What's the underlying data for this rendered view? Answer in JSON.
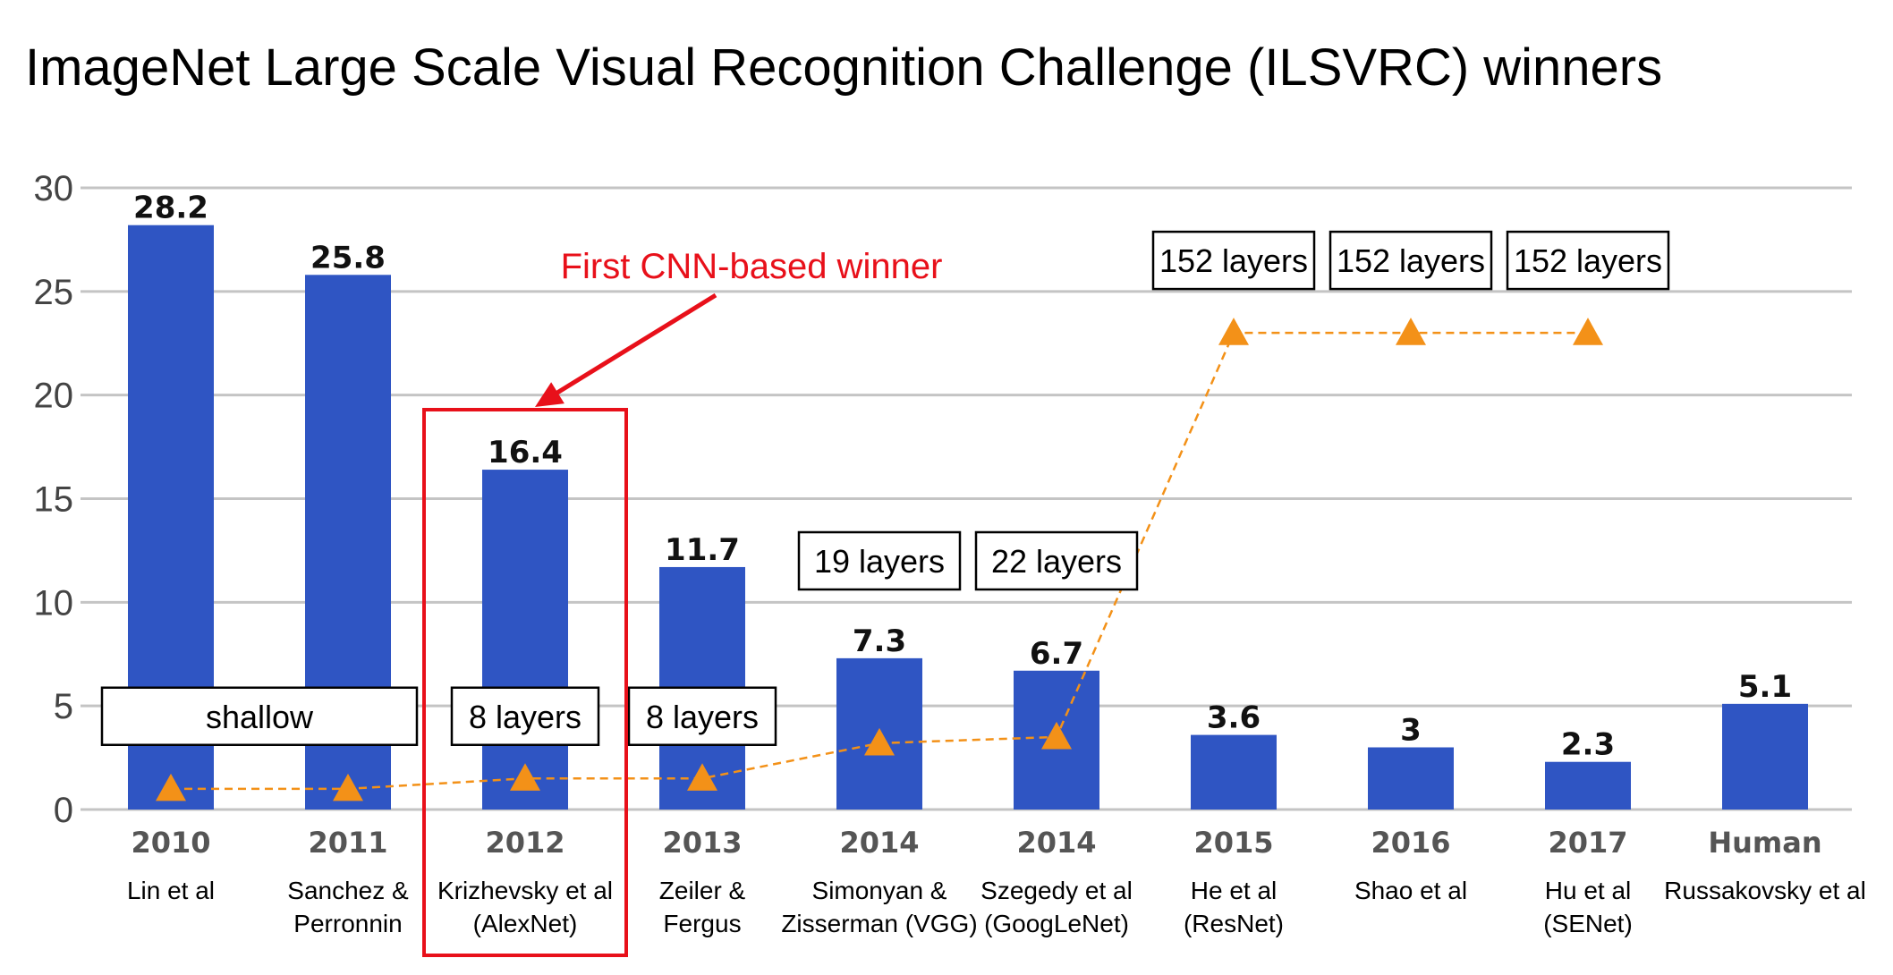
{
  "chart_data": {
    "type": "bar",
    "title": "ImageNet Large Scale Visual Recognition Challenge (ILSVRC) winners",
    "ylim": [
      0,
      30
    ],
    "yticks": [
      0,
      5,
      10,
      15,
      20,
      25,
      30
    ],
    "grid": true,
    "categories": [
      "2010",
      "2011",
      "2012",
      "2013",
      "2014",
      "2014",
      "2015",
      "2016",
      "2017",
      "Human"
    ],
    "authors": [
      [
        "Lin et al"
      ],
      [
        "Sanchez &",
        "Perronnin"
      ],
      [
        "Krizhevsky et al",
        "(AlexNet)"
      ],
      [
        "Zeiler &",
        "Fergus"
      ],
      [
        "Simonyan &",
        "Zisserman (VGG)"
      ],
      [
        "Szegedy et al",
        "(GoogLeNet)"
      ],
      [
        "He et al",
        "(ResNet)"
      ],
      [
        "Shao et al"
      ],
      [
        "Hu et al",
        "(SENet)"
      ],
      [
        "Russakovsky et al"
      ]
    ],
    "values": [
      28.2,
      25.8,
      16.4,
      11.7,
      7.3,
      6.7,
      3.6,
      3,
      2.3,
      5.1
    ],
    "value_labels": [
      "28.2",
      "25.8",
      "16.4",
      "11.7",
      "7.3",
      "6.7",
      "3.6",
      "3",
      "2.3",
      "5.1"
    ],
    "depth_series": {
      "points_y": [
        1.0,
        1.0,
        1.5,
        1.5,
        3.2,
        3.5,
        23,
        23,
        23
      ],
      "marker": "triangle",
      "line_style": "dashed"
    },
    "depth_labels": [
      {
        "text": "shallow",
        "bars": [
          0,
          1
        ],
        "y": 4.5
      },
      {
        "text": "8 layers",
        "bars": [
          2
        ],
        "y": 4.5
      },
      {
        "text": "8 layers",
        "bars": [
          3
        ],
        "y": 4.5
      },
      {
        "text": "19 layers",
        "bars": [
          4
        ],
        "y": 12
      },
      {
        "text": "22 layers",
        "bars": [
          5
        ],
        "y": 12
      },
      {
        "text": "152 layers",
        "bars": [
          6
        ],
        "y": 26.5
      },
      {
        "text": "152 layers",
        "bars": [
          7
        ],
        "y": 26.5
      },
      {
        "text": "152 layers",
        "bars": [
          8
        ],
        "y": 26.5
      }
    ],
    "annotation": {
      "text": "First CNN-based winner",
      "highlight_bar": 2
    },
    "colors": {
      "bar": "#2f55c3",
      "marker": "#f39118",
      "dashed_line": "#f39118",
      "highlight": "#e8101a",
      "grid": "#c4c4c4"
    }
  }
}
